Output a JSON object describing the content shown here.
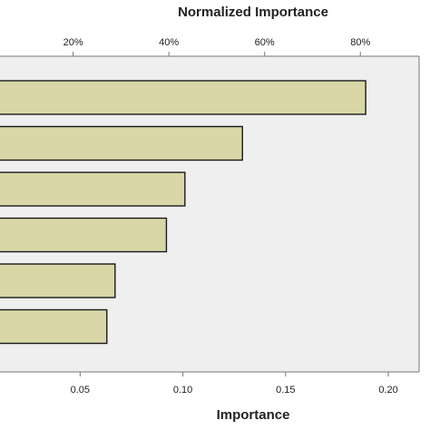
{
  "chart_data": {
    "type": "bar",
    "orientation": "horizontal",
    "categories": [
      "",
      "",
      "",
      "",
      "",
      ""
    ],
    "values": [
      0.189,
      0.129,
      0.101,
      0.092,
      0.067,
      0.063
    ],
    "title": "",
    "top_axis": {
      "label": "Normalized Importance",
      "ticks": [
        {
          "value": 0.0466,
          "label": "20%"
        },
        {
          "value": 0.0932,
          "label": "40%"
        },
        {
          "value": 0.1398,
          "label": "60%"
        },
        {
          "value": 0.1864,
          "label": "80%"
        }
      ]
    },
    "bottom_axis": {
      "label": "Importance",
      "ticks": [
        {
          "value": 0.05,
          "label": "0.05"
        },
        {
          "value": 0.1,
          "label": "0.10"
        },
        {
          "value": 0.15,
          "label": "0.15"
        },
        {
          "value": 0.2,
          "label": "0.20"
        }
      ]
    },
    "xlim": [
      0.011,
      0.215
    ],
    "grid": false,
    "colors": {
      "bar_fill": "#d9d7a8",
      "bar_stroke": "#1a1a1a",
      "plot_background": "#efefef",
      "frame": "#777777"
    }
  }
}
